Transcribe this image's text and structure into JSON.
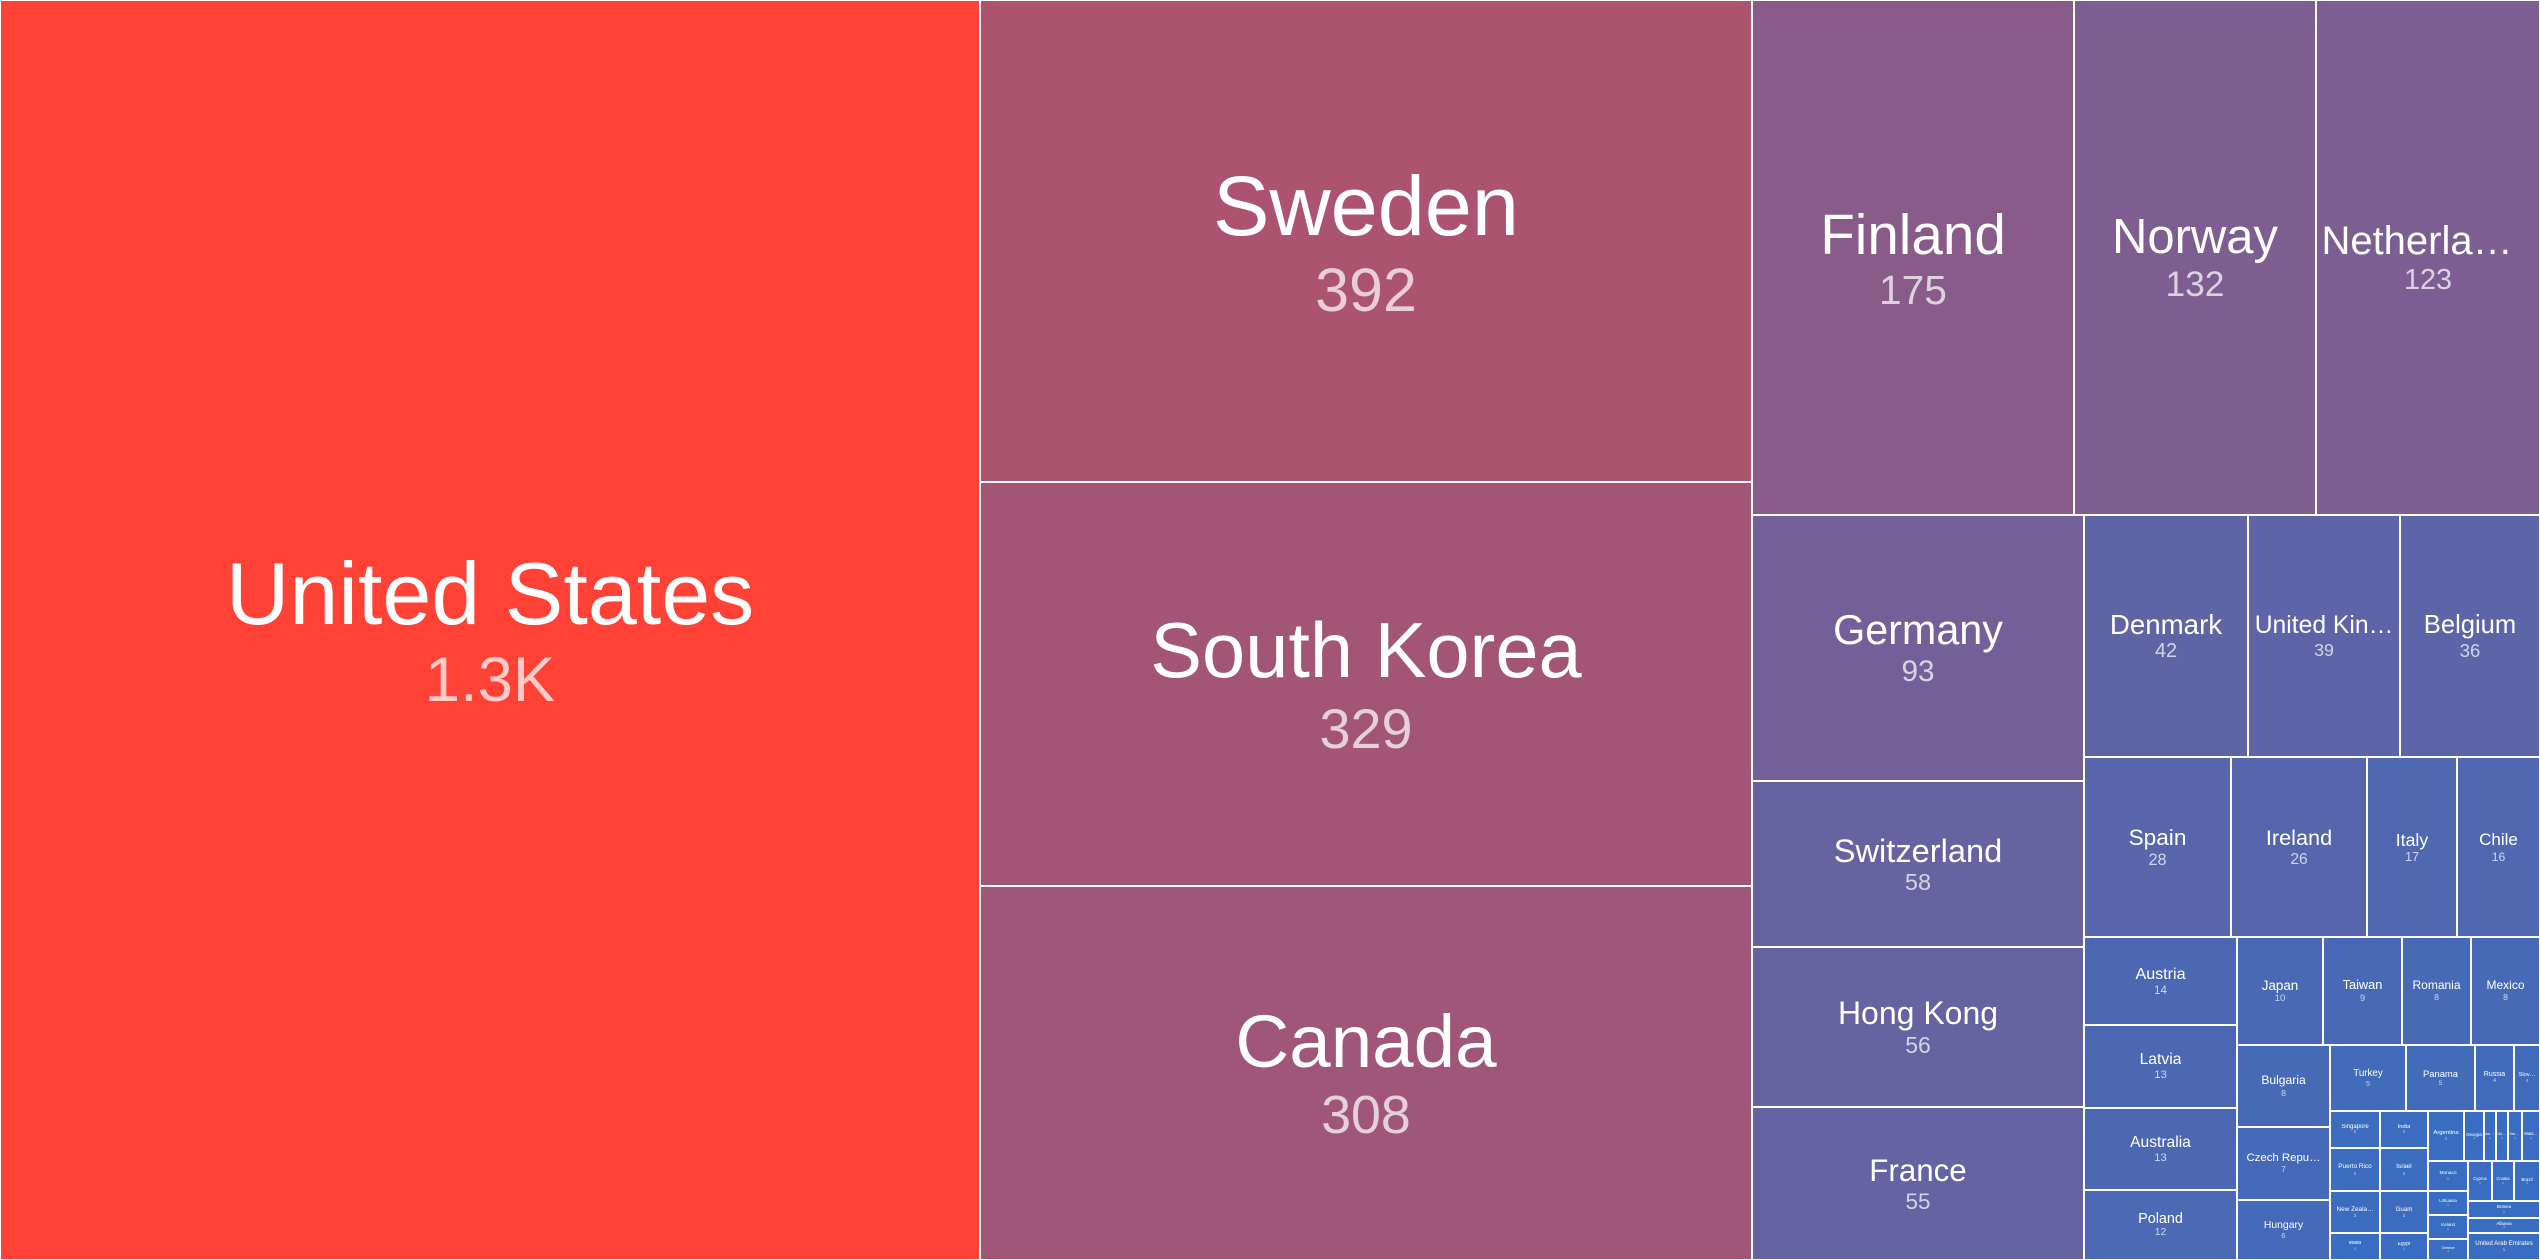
{
  "chart_data": {
    "type": "treemap",
    "title": "",
    "color_scale": {
      "low": "#2e6fc8",
      "high": "#ff4136"
    },
    "items": [
      {
        "name": "United States",
        "value": 1300,
        "label": "1.3K"
      },
      {
        "name": "Sweden",
        "value": 392,
        "label": "392"
      },
      {
        "name": "South Korea",
        "value": 329,
        "label": "329"
      },
      {
        "name": "Canada",
        "value": 308,
        "label": "308"
      },
      {
        "name": "Finland",
        "value": 175,
        "label": "175"
      },
      {
        "name": "Norway",
        "value": 132,
        "label": "132"
      },
      {
        "name": "Netherlan…",
        "value": 123,
        "label": "123"
      },
      {
        "name": "Germany",
        "value": 93,
        "label": "93"
      },
      {
        "name": "Switzerland",
        "value": 58,
        "label": "58"
      },
      {
        "name": "Hong Kong",
        "value": 56,
        "label": "56"
      },
      {
        "name": "France",
        "value": 55,
        "label": "55"
      },
      {
        "name": "Denmark",
        "value": 42,
        "label": "42"
      },
      {
        "name": "United Kin…",
        "value": 39,
        "label": "39"
      },
      {
        "name": "Belgium",
        "value": 36,
        "label": "36"
      },
      {
        "name": "Spain",
        "value": 28,
        "label": "28"
      },
      {
        "name": "Ireland",
        "value": 26,
        "label": "26"
      },
      {
        "name": "Italy",
        "value": 17,
        "label": "17"
      },
      {
        "name": "Chile",
        "value": 16,
        "label": "16"
      },
      {
        "name": "Austria",
        "value": 14,
        "label": "14"
      },
      {
        "name": "Latvia",
        "value": 13,
        "label": "13"
      },
      {
        "name": "Australia",
        "value": 13,
        "label": "13"
      },
      {
        "name": "Poland",
        "value": 12,
        "label": "12"
      },
      {
        "name": "Japan",
        "value": 10,
        "label": "10"
      },
      {
        "name": "Taiwan",
        "value": 9,
        "label": "9"
      },
      {
        "name": "Romania",
        "value": 8,
        "label": "8"
      },
      {
        "name": "Mexico",
        "value": 8,
        "label": "8"
      },
      {
        "name": "Bulgaria",
        "value": 8,
        "label": "8"
      },
      {
        "name": "Czech Repu…",
        "value": 7,
        "label": "7"
      },
      {
        "name": "Hungary",
        "value": 6,
        "label": "6"
      },
      {
        "name": "Turkey",
        "value": 5,
        "label": "5"
      },
      {
        "name": "Panama",
        "value": 5,
        "label": "5"
      },
      {
        "name": "Russia",
        "value": 4,
        "label": "4"
      },
      {
        "name": "Slov…",
        "value": 4,
        "label": "4"
      },
      {
        "name": "Singapore",
        "value": 2,
        "label": "2"
      },
      {
        "name": "India",
        "value": 2,
        "label": "2"
      },
      {
        "name": "Puerto Rico",
        "value": 2,
        "label": "2"
      },
      {
        "name": "Israel",
        "value": 2,
        "label": "2"
      },
      {
        "name": "New Zeala…",
        "value": 2,
        "label": "2"
      },
      {
        "name": "Guam",
        "value": 2,
        "label": "2"
      },
      {
        "name": "Malta",
        "value": 1,
        "label": "1"
      },
      {
        "name": "Egypt",
        "value": 1,
        "label": "1"
      },
      {
        "name": "Argentina",
        "value": 1,
        "label": "1"
      },
      {
        "name": "Georgia",
        "value": 1,
        "label": "1"
      },
      {
        "name": "Andorra",
        "value": 1,
        "label": "1"
      },
      {
        "name": "Ukraine",
        "value": 1,
        "label": "1"
      },
      {
        "name": "Serbia",
        "value": 1,
        "label": "1"
      },
      {
        "name": "Mala…",
        "value": 1,
        "label": "1"
      },
      {
        "name": "Monaco",
        "value": 1,
        "label": "1"
      },
      {
        "name": "Lithuania",
        "value": 1,
        "label": "1"
      },
      {
        "name": "Iceland",
        "value": 1,
        "label": "1"
      },
      {
        "name": "Cyprus",
        "value": 1,
        "label": "1"
      },
      {
        "name": "Croatia",
        "value": 1,
        "label": "1"
      },
      {
        "name": "Brazil",
        "value": 1,
        "label": "1"
      },
      {
        "name": "Bolivia",
        "value": 1,
        "label": "1"
      },
      {
        "name": "Albania",
        "value": 1,
        "label": "1"
      },
      {
        "name": "United Arab Emirates",
        "value": 1,
        "label": "1"
      },
      {
        "name": "Greece",
        "value": 1,
        "label": "1"
      }
    ]
  }
}
